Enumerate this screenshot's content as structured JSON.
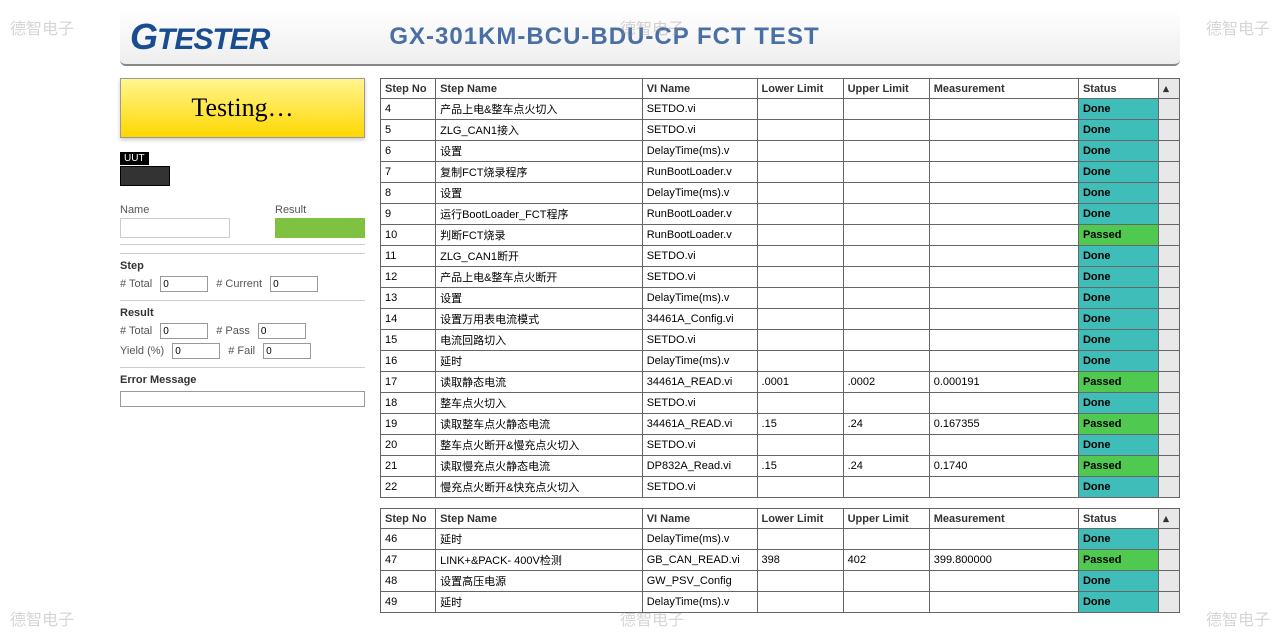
{
  "watermark_text": "德智电子",
  "logo_text": "GTESTER",
  "header_title": "GX-301KM-BCU-BDU-CP FCT TEST",
  "testing_label": "Testing…",
  "uut_label": "UUT",
  "left": {
    "name_label": "Name",
    "result_label": "Result",
    "step_title": "Step",
    "total_label": "# Total",
    "total_val": "0",
    "current_label": "# Current",
    "current_val": "0",
    "result_title": "Result",
    "rtotal_label": "# Total",
    "rtotal_val": "0",
    "pass_label": "# Pass",
    "pass_val": "0",
    "yield_label": "Yield (%)",
    "yield_val": "0",
    "fail_label": "# Fail",
    "fail_val": "0",
    "error_title": "Error Message"
  },
  "columns": [
    "Step No",
    "Step Name",
    "VI Name",
    "Lower Limit",
    "Upper Limit",
    "Measurement",
    "Status"
  ],
  "colors": {
    "done": "#3fbdb8",
    "passed": "#4fc94f",
    "header_text": "#4a6fa5",
    "logo": "#1a4d8f",
    "testing_bg": "#ffd700"
  },
  "rows1": [
    {
      "no": "4",
      "name": "产品上电&整车点火切入",
      "vi": "SETDO.vi",
      "ll": "",
      "ul": "",
      "m": "",
      "st": "Done",
      "cls": "done"
    },
    {
      "no": "5",
      "name": "ZLG_CAN1接入",
      "vi": "SETDO.vi",
      "ll": "",
      "ul": "",
      "m": "",
      "st": "Done",
      "cls": "done"
    },
    {
      "no": "6",
      "name": "设置",
      "vi": "DelayTime(ms).v",
      "ll": "",
      "ul": "",
      "m": "",
      "st": "Done",
      "cls": "done"
    },
    {
      "no": "7",
      "name": "复制FCT烧录程序",
      "vi": "RunBootLoader.v",
      "ll": "",
      "ul": "",
      "m": "",
      "st": "Done",
      "cls": "done"
    },
    {
      "no": "8",
      "name": "设置",
      "vi": "DelayTime(ms).v",
      "ll": "",
      "ul": "",
      "m": "",
      "st": "Done",
      "cls": "done"
    },
    {
      "no": "9",
      "name": "运行BootLoader_FCT程序",
      "vi": "RunBootLoader.v",
      "ll": "",
      "ul": "",
      "m": "",
      "st": "Done",
      "cls": "done"
    },
    {
      "no": "10",
      "name": "判断FCT烧录",
      "vi": "RunBootLoader.v",
      "ll": "",
      "ul": "",
      "m": "",
      "st": "Passed",
      "cls": "passed"
    },
    {
      "no": "11",
      "name": "ZLG_CAN1断开",
      "vi": "SETDO.vi",
      "ll": "",
      "ul": "",
      "m": "",
      "st": "Done",
      "cls": "done"
    },
    {
      "no": "12",
      "name": "产品上电&整车点火断开",
      "vi": "SETDO.vi",
      "ll": "",
      "ul": "",
      "m": "",
      "st": "Done",
      "cls": "done"
    },
    {
      "no": "13",
      "name": "设置",
      "vi": "DelayTime(ms).v",
      "ll": "",
      "ul": "",
      "m": "",
      "st": "Done",
      "cls": "done"
    },
    {
      "no": "14",
      "name": "设置万用表电流模式",
      "vi": "34461A_Config.vi",
      "ll": "",
      "ul": "",
      "m": "",
      "st": "Done",
      "cls": "done"
    },
    {
      "no": "15",
      "name": "电流回路切入",
      "vi": "SETDO.vi",
      "ll": "",
      "ul": "",
      "m": "",
      "st": "Done",
      "cls": "done"
    },
    {
      "no": "16",
      "name": "延时",
      "vi": "DelayTime(ms).v",
      "ll": "",
      "ul": "",
      "m": "",
      "st": "Done",
      "cls": "done"
    },
    {
      "no": "17",
      "name": "读取静态电流",
      "vi": "34461A_READ.vi",
      "ll": ".0001",
      "ul": ".0002",
      "m": "0.000191",
      "st": "Passed",
      "cls": "passed"
    },
    {
      "no": "18",
      "name": "整车点火切入",
      "vi": "SETDO.vi",
      "ll": "",
      "ul": "",
      "m": "",
      "st": "Done",
      "cls": "done"
    },
    {
      "no": "19",
      "name": "读取整车点火静态电流",
      "vi": "34461A_READ.vi",
      "ll": ".15",
      "ul": ".24",
      "m": "0.167355",
      "st": "Passed",
      "cls": "passed"
    },
    {
      "no": "20",
      "name": "整车点火断开&慢充点火切入",
      "vi": "SETDO.vi",
      "ll": "",
      "ul": "",
      "m": "",
      "st": "Done",
      "cls": "done"
    },
    {
      "no": "21",
      "name": "读取慢充点火静态电流",
      "vi": "DP832A_Read.vi",
      "ll": ".15",
      "ul": ".24",
      "m": "0.1740",
      "st": "Passed",
      "cls": "passed"
    },
    {
      "no": "22",
      "name": "慢充点火断开&快充点火切入",
      "vi": "SETDO.vi",
      "ll": "",
      "ul": "",
      "m": "",
      "st": "Done",
      "cls": "done"
    }
  ],
  "rows2": [
    {
      "no": "46",
      "name": "延时",
      "vi": "DelayTime(ms).v",
      "ll": "",
      "ul": "",
      "m": "",
      "st": "Done",
      "cls": "done"
    },
    {
      "no": "47",
      "name": "LINK+&PACK- 400V检测",
      "vi": "GB_CAN_READ.vi",
      "ll": "398",
      "ul": "402",
      "m": "399.800000",
      "st": "Passed",
      "cls": "passed"
    },
    {
      "no": "48",
      "name": "设置高压电源",
      "vi": "GW_PSV_Config",
      "ll": "",
      "ul": "",
      "m": "",
      "st": "Done",
      "cls": "done"
    },
    {
      "no": "49",
      "name": "延时",
      "vi": "DelayTime(ms).v",
      "ll": "",
      "ul": "",
      "m": "",
      "st": "Done",
      "cls": "done"
    }
  ]
}
